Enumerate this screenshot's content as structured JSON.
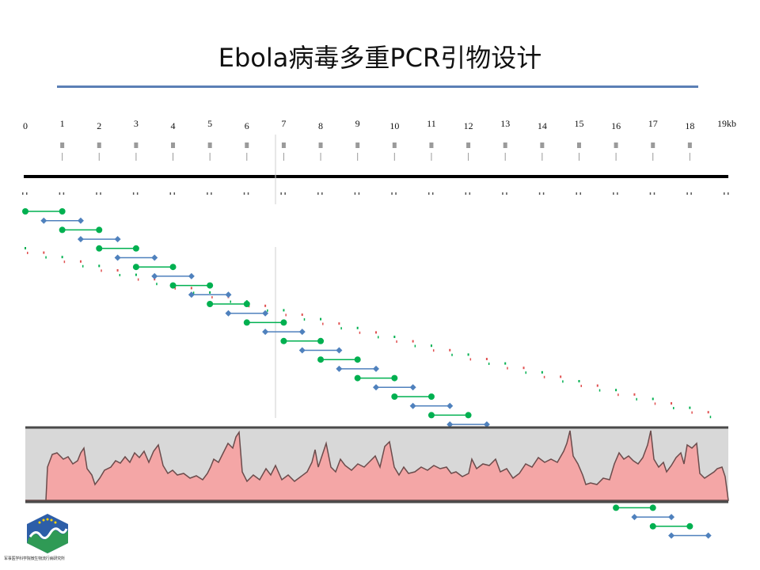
{
  "slide": {
    "title": "Ebola病毒多重PCR引物设计"
  },
  "axis": {
    "unit_suffix": "kb",
    "max": 19,
    "labels": [
      "0",
      "1",
      "2",
      "3",
      "4",
      "5",
      "6",
      "7",
      "8",
      "9",
      "10",
      "11",
      "12",
      "13",
      "14",
      "15",
      "16",
      "17",
      "18",
      "19kb"
    ]
  },
  "amplicons": {
    "count": 36,
    "start_kb": 0,
    "step_kb": 0.5,
    "length_kb": 1.0,
    "colors": [
      "#00b050",
      "#4f81bd"
    ],
    "marker_shapes": [
      "circle",
      "diamond"
    ]
  },
  "colors": {
    "title_rule": "#5b7fb5",
    "genome_line": "#000000",
    "coverage_fill": "#f4a6a6",
    "coverage_line": "#6b4c4c",
    "coverage_band": "#d8d8d8",
    "primer_forward": "#00b050",
    "primer_reverse": "#e05050"
  },
  "logo": {
    "icon": "institute-shield-logo"
  },
  "footer": {
    "institute_text": "军事医学科学院微生物流行病研究所"
  }
}
